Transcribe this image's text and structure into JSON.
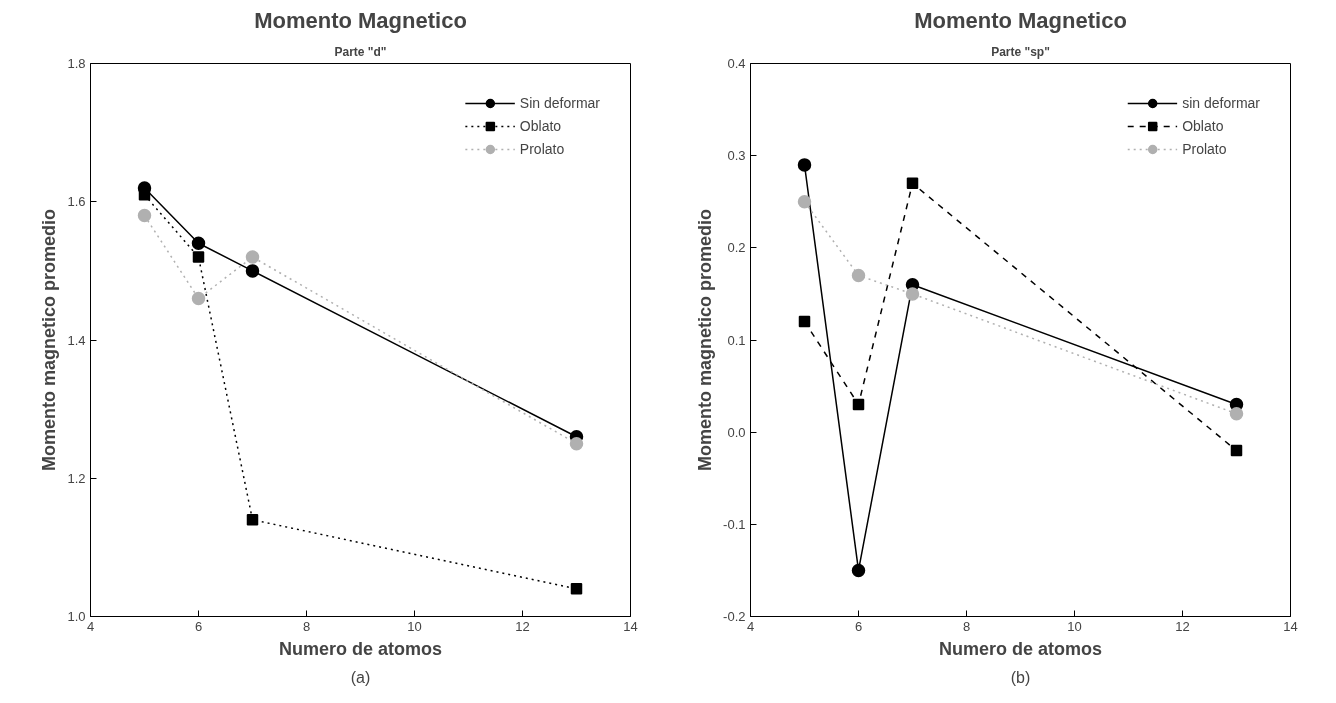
{
  "chart_data": [
    {
      "type": "line",
      "title": "Momento Magnetico",
      "subtitle": "Parte \"d\"",
      "xlabel": "Numero de atomos",
      "ylabel": "Momento magnetico promedio",
      "xlim": [
        4,
        14
      ],
      "xticks": [
        4,
        6,
        8,
        10,
        12,
        14
      ],
      "ylim": [
        1.0,
        1.8
      ],
      "yticks": [
        {
          "value": 1.0,
          "label": "1.0"
        },
        1.2,
        1.4,
        1.6,
        1.8
      ],
      "grid": false,
      "legend": "top right",
      "annotations": [
        "(a)"
      ],
      "x": [
        5,
        6,
        7,
        13
      ],
      "series": [
        {
          "name": "Sin deformar",
          "color": "#000000",
          "values": [
            1.62,
            1.54,
            1.5,
            1.26
          ],
          "marker": "circle",
          "line_style": "solid"
        },
        {
          "name": "Oblato",
          "color": "#000000",
          "values": [
            1.61,
            1.52,
            1.14,
            1.04
          ],
          "marker": "square",
          "line_style": "dotted"
        },
        {
          "name": "Prolato",
          "color": "#b0b0b0",
          "values": [
            1.58,
            1.46,
            1.52,
            1.25
          ],
          "marker": "circle",
          "line_style": "dotted"
        }
      ]
    },
    {
      "type": "line",
      "title": "Momento Magnetico",
      "subtitle": "Parte \"sp\"",
      "xlabel": "Numero de atomos",
      "ylabel": "Momento magnetico promedio",
      "xlim": [
        4,
        14
      ],
      "xticks": [
        4,
        6,
        8,
        10,
        12,
        14
      ],
      "ylim": [
        -0.2,
        0.4
      ],
      "yticks": [
        {
          "value": -0.2,
          "label": "-0.2"
        },
        {
          "value": -0.1,
          "label": "-0.1"
        },
        {
          "value": 0.0,
          "label": "0.0"
        },
        0.1,
        0.2,
        0.3,
        0.4
      ],
      "grid": false,
      "legend": "top right",
      "annotations": [
        "(b)"
      ],
      "x": [
        5,
        6,
        7,
        13
      ],
      "series": [
        {
          "name": "sin deformar",
          "color": "#000000",
          "values": [
            0.29,
            -0.15,
            0.16,
            0.03
          ],
          "marker": "circle",
          "line_style": "solid"
        },
        {
          "name": "Oblato",
          "color": "#000000",
          "values": [
            0.12,
            0.03,
            0.27,
            -0.02
          ],
          "marker": "square",
          "line_style": "dashed"
        },
        {
          "name": "Prolato",
          "color": "#b0b0b0",
          "values": [
            0.25,
            0.17,
            0.15,
            0.02
          ],
          "marker": "circle",
          "line_style": "dotted"
        }
      ]
    }
  ]
}
